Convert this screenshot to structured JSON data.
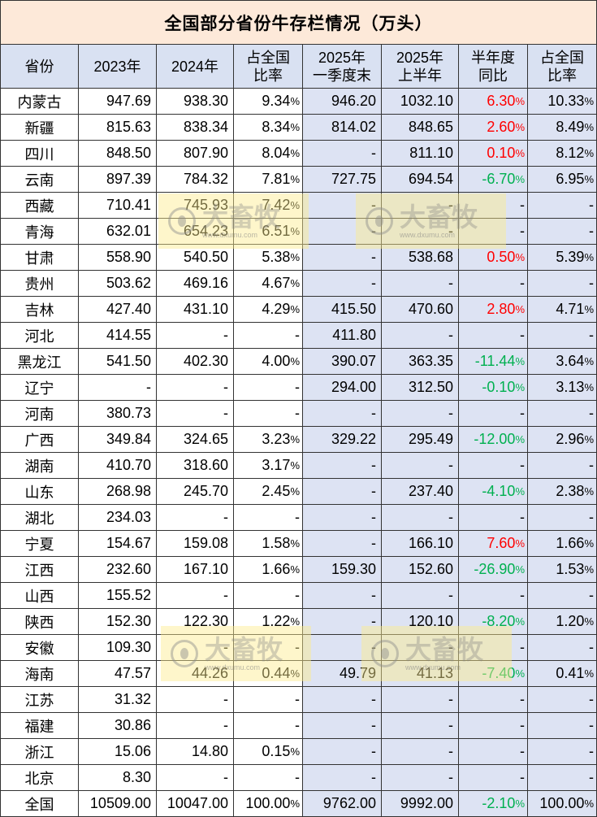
{
  "title": "全国部分省份牛存栏情况（万头）",
  "colors": {
    "title_bg": "#fde9d9",
    "header_bg": "#d9e1f2",
    "tint_bg": "#dde3f3",
    "up": "#ff0000",
    "down": "#00b050"
  },
  "header": [
    {
      "lines": [
        "省份"
      ]
    },
    {
      "lines": [
        "2023年"
      ]
    },
    {
      "lines": [
        "2024年"
      ]
    },
    {
      "lines": [
        "占全国",
        "比率"
      ]
    },
    {
      "lines": [
        "2025年",
        "一季度末"
      ]
    },
    {
      "lines": [
        "2025年",
        "上半年"
      ]
    },
    {
      "lines": [
        "半年度",
        "同比"
      ]
    },
    {
      "lines": [
        "占全国",
        "比率"
      ]
    }
  ],
  "table": {
    "rows": [
      {
        "province": "内蒙古",
        "values": [
          "947.69",
          "938.30",
          "9.34%",
          "946.20",
          "1032.10",
          "6.30%",
          "10.33%"
        ]
      },
      {
        "province": "新疆",
        "values": [
          "815.63",
          "838.34",
          "8.34%",
          "814.02",
          "848.65",
          "2.60%",
          "8.49%"
        ]
      },
      {
        "province": "四川",
        "values": [
          "848.50",
          "807.90",
          "8.04%",
          "-",
          "811.10",
          "0.10%",
          "8.12%"
        ]
      },
      {
        "province": "云南",
        "values": [
          "897.39",
          "784.32",
          "7.81%",
          "727.75",
          "694.54",
          "-6.70%",
          "6.95%"
        ]
      },
      {
        "province": "西藏",
        "values": [
          "710.41",
          "745.93",
          "7.42%",
          "-",
          "-",
          "-",
          "-"
        ]
      },
      {
        "province": "青海",
        "values": [
          "632.01",
          "654.23",
          "6.51%",
          "-",
          "-",
          "-",
          "-"
        ]
      },
      {
        "province": "甘肃",
        "values": [
          "558.90",
          "540.50",
          "5.38%",
          "-",
          "538.68",
          "0.50%",
          "5.39%"
        ]
      },
      {
        "province": "贵州",
        "values": [
          "503.62",
          "469.16",
          "4.67%",
          "-",
          "-",
          "-",
          "-"
        ]
      },
      {
        "province": "吉林",
        "values": [
          "427.40",
          "431.10",
          "4.29%",
          "415.50",
          "470.60",
          "2.80%",
          "4.71%"
        ]
      },
      {
        "province": "河北",
        "values": [
          "414.55",
          "-",
          "-",
          "411.80",
          "-",
          "-",
          "-"
        ]
      },
      {
        "province": "黑龙江",
        "values": [
          "541.50",
          "402.30",
          "4.00%",
          "390.07",
          "363.35",
          "-11.44%",
          "3.64%"
        ]
      },
      {
        "province": "辽宁",
        "values": [
          "-",
          "-",
          "-",
          "294.00",
          "312.50",
          "-0.10%",
          "3.13%"
        ]
      },
      {
        "province": "河南",
        "values": [
          "380.73",
          "-",
          "-",
          "-",
          "-",
          "-",
          "-"
        ]
      },
      {
        "province": "广西",
        "values": [
          "349.84",
          "324.65",
          "3.23%",
          "329.22",
          "295.49",
          "-12.00%",
          "2.96%"
        ]
      },
      {
        "province": "湖南",
        "values": [
          "410.70",
          "318.60",
          "3.17%",
          "-",
          "-",
          "-",
          "-"
        ]
      },
      {
        "province": "山东",
        "values": [
          "268.98",
          "245.70",
          "2.45%",
          "-",
          "237.40",
          "-4.10%",
          "2.38%"
        ]
      },
      {
        "province": "湖北",
        "values": [
          "234.03",
          "-",
          "-",
          "-",
          "-",
          "-",
          "-"
        ]
      },
      {
        "province": "宁夏",
        "values": [
          "154.67",
          "159.08",
          "1.58%",
          "-",
          "166.10",
          "7.60%",
          "1.66%"
        ]
      },
      {
        "province": "江西",
        "values": [
          "232.60",
          "167.10",
          "1.66%",
          "159.30",
          "152.60",
          "-26.90%",
          "1.53%"
        ]
      },
      {
        "province": "山西",
        "values": [
          "155.52",
          "-",
          "-",
          "-",
          "-",
          "-",
          "-"
        ]
      },
      {
        "province": "陕西",
        "values": [
          "152.30",
          "122.30",
          "1.22%",
          "-",
          "120.10",
          "-8.20%",
          "1.20%"
        ]
      },
      {
        "province": "安徽",
        "values": [
          "109.30",
          "-",
          "-",
          "-",
          "-",
          "-",
          "-"
        ]
      },
      {
        "province": "海南",
        "values": [
          "47.57",
          "44.26",
          "0.44%",
          "49.79",
          "41.13",
          "-7.40%",
          "0.41%"
        ]
      },
      {
        "province": "江苏",
        "values": [
          "31.32",
          "-",
          "-",
          "-",
          "-",
          "-",
          "-"
        ]
      },
      {
        "province": "福建",
        "values": [
          "30.86",
          "-",
          "-",
          "-",
          "-",
          "-",
          "-"
        ]
      },
      {
        "province": "浙江",
        "values": [
          "15.06",
          "14.80",
          "0.15%",
          "-",
          "-",
          "-",
          "-"
        ]
      },
      {
        "province": "北京",
        "values": [
          "8.30",
          "-",
          "-",
          "-",
          "-",
          "-",
          "-"
        ]
      },
      {
        "province": "全国",
        "values": [
          "10509.00",
          "10047.00",
          "100.00%",
          "9762.00",
          "9992.00",
          "-2.10%",
          "100.00%"
        ]
      }
    ]
  },
  "watermark": {
    "brand": "大畜牧",
    "site": "www.dxumu.com",
    "icon": "circle-logo-icon"
  }
}
